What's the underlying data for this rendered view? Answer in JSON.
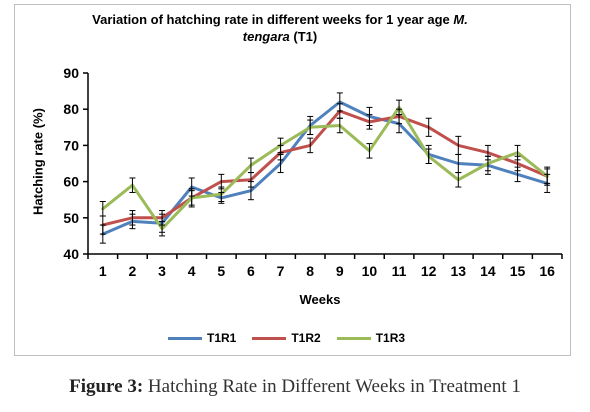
{
  "chart_data": {
    "type": "line",
    "title_part1": "Variation of hatching  rate in different weeks for 1 year age ",
    "title_species_a": "M.",
    "title_species_b": "tengara",
    "title_part2": " (T1)",
    "xlabel": "Weeks",
    "ylabel": "Hatching rate (%)",
    "ylim": [
      40,
      90
    ],
    "yticks": [
      40,
      50,
      60,
      70,
      80,
      90
    ],
    "x": [
      1,
      2,
      3,
      4,
      5,
      6,
      7,
      8,
      9,
      10,
      11,
      12,
      13,
      14,
      15,
      16
    ],
    "series": [
      {
        "name": "T1R1",
        "color": "#4f81bd",
        "values": [
          45.5,
          49,
          48.5,
          58.5,
          55.5,
          57.5,
          65,
          75.5,
          82,
          78,
          76,
          67.5,
          65,
          64.5,
          62,
          59.5
        ],
        "errors": [
          2.5,
          2.0,
          2.5,
          2.5,
          1.5,
          2.5,
          2.5,
          2.5,
          2.5,
          2.5,
          2.5,
          2.5,
          2.5,
          2.5,
          2.0,
          2.5
        ]
      },
      {
        "name": "T1R2",
        "color": "#c0504d",
        "values": [
          48,
          50,
          50,
          55.5,
          60,
          60.5,
          68,
          70,
          79.5,
          76.5,
          78,
          75,
          70,
          68,
          65,
          61.5
        ],
        "errors": [
          2.5,
          2.0,
          2.0,
          2.5,
          2.0,
          2.0,
          2.0,
          2.0,
          2.0,
          2.0,
          2.0,
          2.5,
          2.5,
          2.0,
          2.0,
          2.5
        ]
      },
      {
        "name": "T1R3",
        "color": "#9bbb59",
        "values": [
          52.5,
          59,
          47,
          55.5,
          56.5,
          64.5,
          70,
          75,
          75.5,
          68.5,
          80.5,
          67,
          60.5,
          65,
          68,
          61.5
        ],
        "errors": [
          2.0,
          2.0,
          2.0,
          2.0,
          2.0,
          2.0,
          2.0,
          2.0,
          2.0,
          2.0,
          2.0,
          2.0,
          2.0,
          2.0,
          2.0,
          2.0
        ]
      }
    ],
    "legend_position": "bottom"
  },
  "caption": {
    "label": "Figure 3:",
    "text": " Hatching Rate in Different Weeks in Treatment 1"
  }
}
